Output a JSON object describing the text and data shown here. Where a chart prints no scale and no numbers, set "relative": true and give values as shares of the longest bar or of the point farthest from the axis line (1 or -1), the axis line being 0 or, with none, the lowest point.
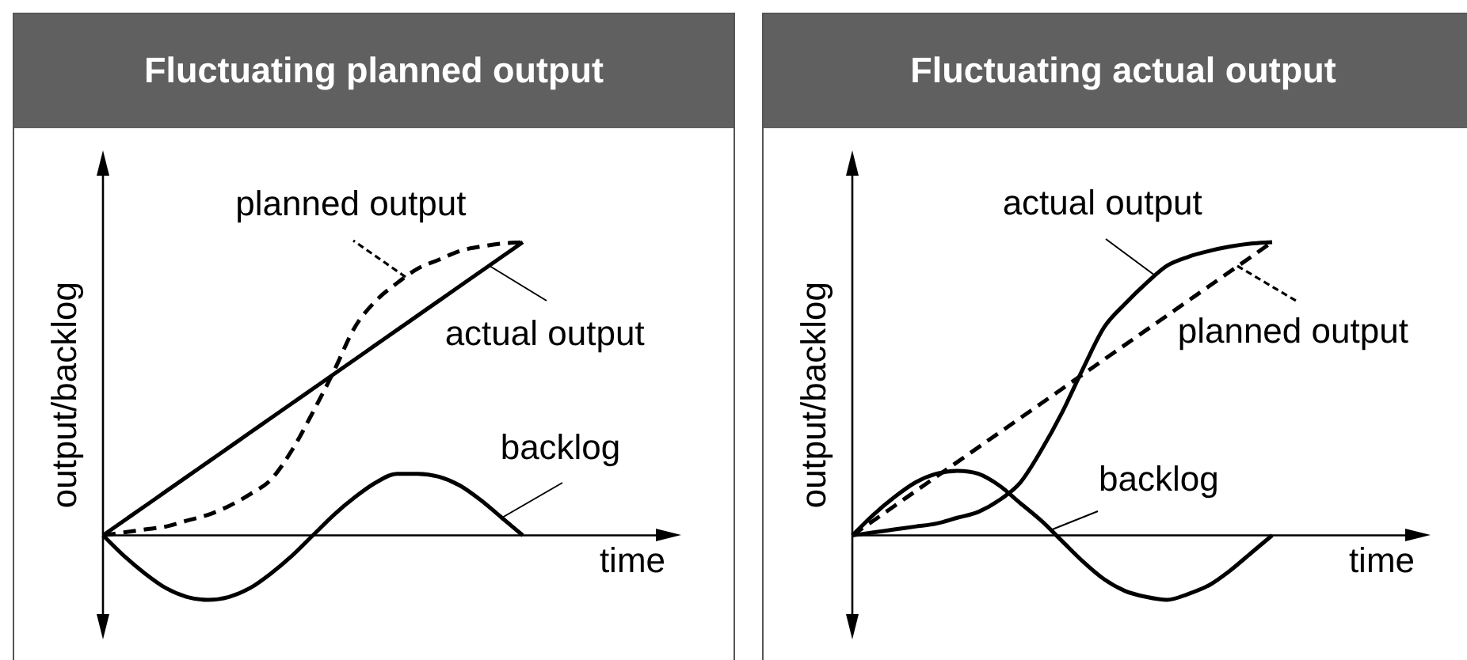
{
  "chart_data": [
    {
      "type": "line",
      "title": "Fluctuating planned output",
      "xlabel": "time",
      "ylabel": "output/backlog",
      "relative": true,
      "marker": "none",
      "categories": [
        null,
        null,
        null,
        null,
        null,
        null,
        null,
        null,
        null,
        null,
        null,
        null,
        null,
        null,
        null,
        null,
        null,
        null,
        null,
        null,
        null
      ],
      "series": [
        {
          "name": "planned output",
          "color": "#000000",
          "line_style": "dashed",
          "values": [
            0,
            0.01,
            0.02,
            0.03,
            0.05,
            0.07,
            0.1,
            0.14,
            0.19,
            0.29,
            0.42,
            0.56,
            0.71,
            0.8,
            0.86,
            0.91,
            0.94,
            0.97,
            0.985,
            0.995,
            1
          ]
        },
        {
          "name": "actual output",
          "color": "#000000",
          "line_style": "solid",
          "values": [
            0,
            0.05,
            0.1,
            0.15,
            0.2,
            0.25,
            0.3,
            0.35,
            0.4,
            0.45,
            0.5,
            0.55,
            0.6,
            0.65,
            0.7,
            0.75,
            0.8,
            0.85,
            0.9,
            0.95,
            1
          ]
        },
        {
          "name": "backlog",
          "color": "#000000",
          "line_style": "solid",
          "values": [
            0,
            -0.07,
            -0.13,
            -0.18,
            -0.21,
            -0.22,
            -0.21,
            -0.18,
            -0.13,
            -0.07,
            0,
            0.07,
            0.13,
            0.18,
            0.21,
            0.21,
            0.2,
            0.17,
            0.12,
            0.06,
            0
          ]
        }
      ]
    },
    {
      "type": "line",
      "title": "Fluctuating actual output",
      "xlabel": "time",
      "ylabel": "output/backlog",
      "relative": true,
      "marker": "none",
      "categories": [
        null,
        null,
        null,
        null,
        null,
        null,
        null,
        null,
        null,
        null,
        null,
        null,
        null,
        null,
        null,
        null,
        null,
        null,
        null,
        null,
        null
      ],
      "series": [
        {
          "name": "actual output",
          "color": "#000000",
          "line_style": "solid",
          "values": [
            0,
            0.01,
            0.02,
            0.03,
            0.04,
            0.06,
            0.08,
            0.12,
            0.18,
            0.29,
            0.42,
            0.57,
            0.71,
            0.79,
            0.86,
            0.92,
            0.95,
            0.97,
            0.985,
            0.995,
            1
          ]
        },
        {
          "name": "planned output",
          "color": "#000000",
          "line_style": "dashed",
          "values": [
            0,
            0.05,
            0.1,
            0.15,
            0.2,
            0.25,
            0.3,
            0.35,
            0.4,
            0.45,
            0.5,
            0.55,
            0.6,
            0.65,
            0.7,
            0.75,
            0.8,
            0.85,
            0.9,
            0.95,
            1
          ]
        },
        {
          "name": "backlog",
          "color": "#000000",
          "line_style": "solid",
          "values": [
            0,
            0.07,
            0.13,
            0.18,
            0.21,
            0.22,
            0.21,
            0.17,
            0.11,
            0.05,
            -0.02,
            -0.09,
            -0.15,
            -0.19,
            -0.21,
            -0.22,
            -0.2,
            -0.17,
            -0.12,
            -0.06,
            0
          ]
        }
      ]
    }
  ]
}
